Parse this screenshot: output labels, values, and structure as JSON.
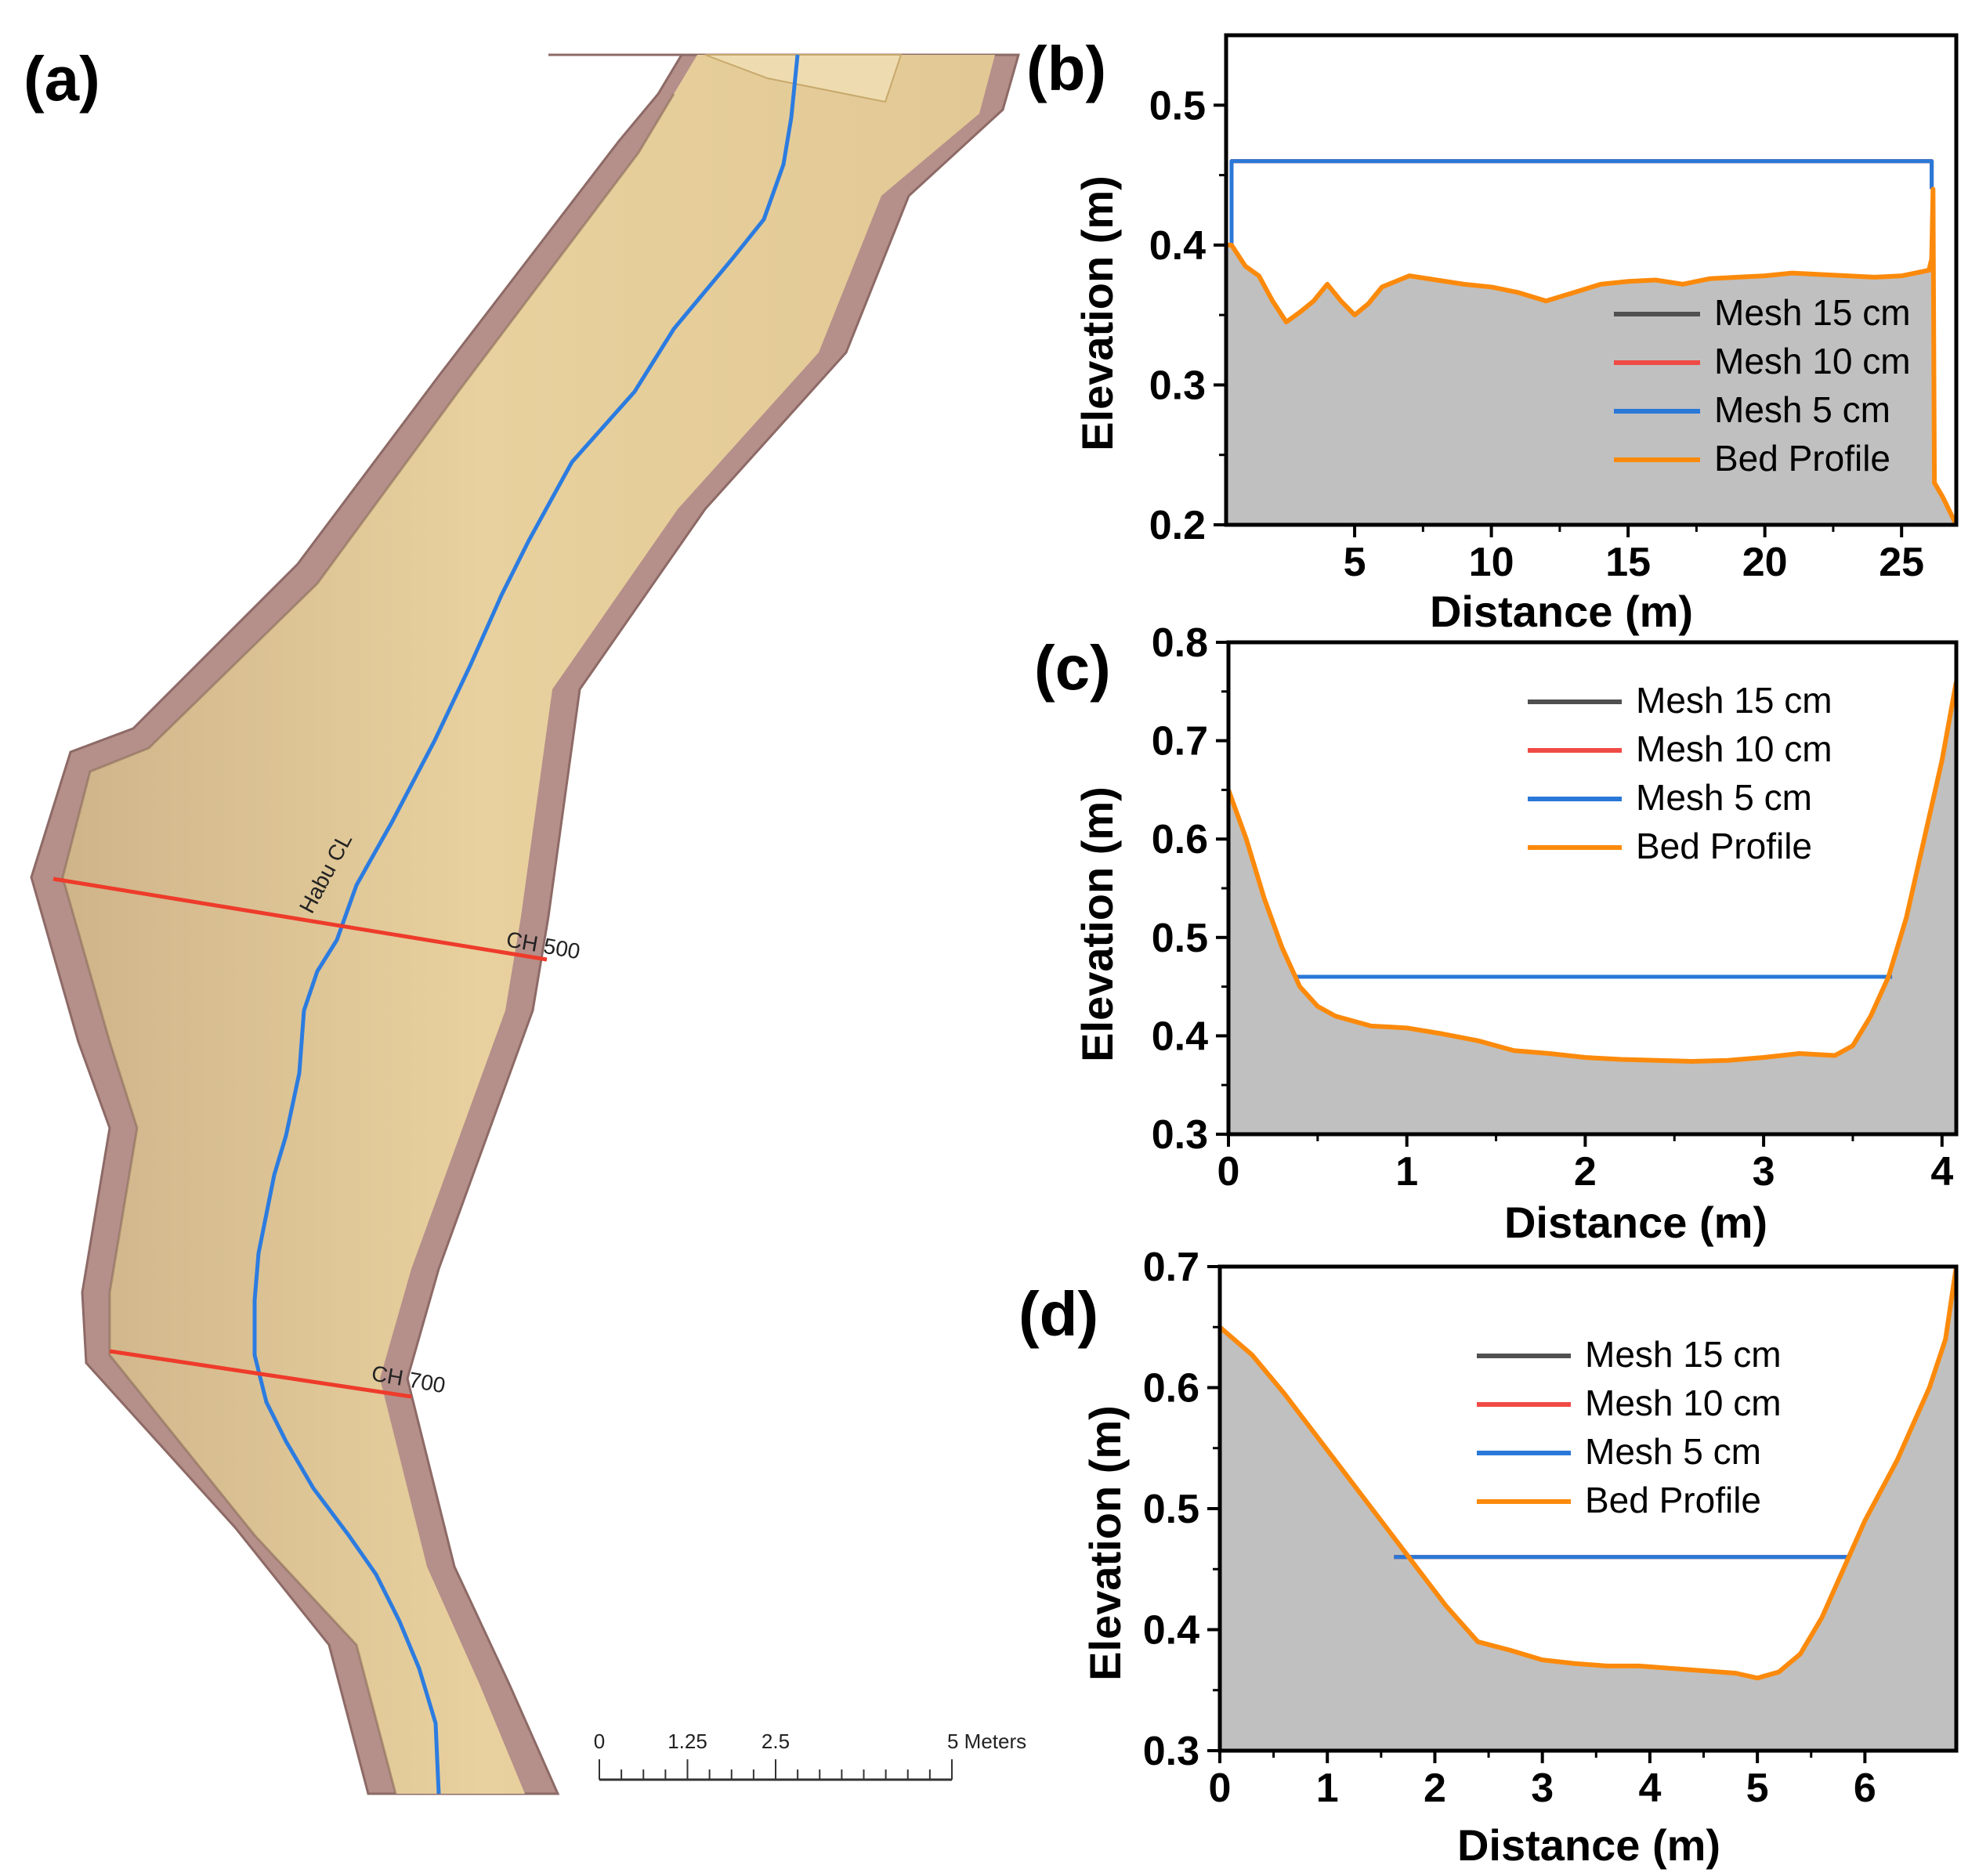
{
  "colors": {
    "mesh15": "#505050",
    "mesh10": "#f04a45",
    "mesh5": "#2a78d8",
    "bed": "#fb8a0c",
    "fill": "#c0c0c0",
    "bank": "#b58f8a",
    "channel": "#e7cf9c",
    "centerline": "#2c7ce0",
    "section": "#ee3b2b"
  },
  "panel_a": {
    "letter": "(a)",
    "centerline_label": "Habu CL",
    "section_labels": [
      "CH 500",
      "CH 700"
    ],
    "scale_bar": {
      "ticks": [
        "0",
        "1.25",
        "2.5",
        "5 Meters"
      ],
      "tick_values": [
        0,
        1.25,
        2.5,
        5
      ]
    }
  },
  "chart_data": [
    {
      "type": "area",
      "panel": "(b)",
      "xlabel": "Distance (m)",
      "ylabel": "Elevation (m)",
      "xlim": [
        0.3,
        27
      ],
      "ylim": [
        0.2,
        0.55
      ],
      "xticks": [
        "5",
        "10",
        "15",
        "20",
        "25"
      ],
      "xtick_values": [
        5,
        10,
        15,
        20,
        25
      ],
      "yticks": [
        "0.2",
        "0.3",
        "0.4",
        "0.5"
      ],
      "ytick_values": [
        0.2,
        0.3,
        0.4,
        0.5
      ],
      "legend": [
        "Mesh 15 cm",
        "Mesh 10 cm",
        "Mesh 5 cm",
        "Bed Profile"
      ],
      "legend_position": "bottom-right",
      "series": [
        {
          "name": "Bed Profile",
          "x": [
            0.3,
            0.5,
            1.0,
            1.5,
            2.0,
            2.5,
            3.0,
            3.5,
            4.0,
            4.5,
            5.0,
            5.5,
            6.0,
            7.0,
            8.0,
            9.0,
            10.0,
            11.0,
            12.0,
            13.0,
            14.0,
            15.0,
            16.0,
            17.0,
            18.0,
            19.0,
            20.0,
            21.0,
            22.0,
            23.0,
            24.0,
            25.0,
            26.0,
            26.1,
            26.15,
            26.2,
            26.5,
            27.0
          ],
          "y": [
            0.4,
            0.4,
            0.385,
            0.378,
            0.36,
            0.345,
            0.352,
            0.36,
            0.372,
            0.36,
            0.35,
            0.358,
            0.37,
            0.378,
            0.375,
            0.372,
            0.37,
            0.366,
            0.36,
            0.366,
            0.372,
            0.374,
            0.375,
            0.372,
            0.376,
            0.377,
            0.378,
            0.38,
            0.379,
            0.378,
            0.377,
            0.378,
            0.382,
            0.39,
            0.44,
            0.23,
            0.22,
            0.2
          ]
        },
        {
          "name": "Mesh 5 cm",
          "x": [
            0.5,
            0.5,
            26.1,
            26.1
          ],
          "y": [
            0.4,
            0.46,
            0.46,
            0.44
          ]
        },
        {
          "name": "Mesh 10 cm",
          "x": [
            0.5,
            0.5,
            26.1,
            26.1
          ],
          "y": [
            0.4,
            0.46,
            0.46,
            0.44
          ]
        },
        {
          "name": "Mesh 15 cm",
          "x": [
            0.5,
            0.5,
            26.1,
            26.1
          ],
          "y": [
            0.4,
            0.46,
            0.46,
            0.44
          ]
        }
      ]
    },
    {
      "type": "area",
      "panel": "(c)",
      "xlabel": "Distance (m)",
      "ylabel": "Elevation (m)",
      "xlim": [
        0,
        4.08
      ],
      "ylim": [
        0.3,
        0.8
      ],
      "xticks": [
        "0",
        "1",
        "2",
        "3",
        "4"
      ],
      "xtick_values": [
        0,
        1,
        2,
        3,
        4
      ],
      "yticks": [
        "0.3",
        "0.4",
        "0.5",
        "0.6",
        "0.7",
        "0.8"
      ],
      "ytick_values": [
        0.3,
        0.4,
        0.5,
        0.6,
        0.7,
        0.8
      ],
      "legend": [
        "Mesh 15 cm",
        "Mesh 10 cm",
        "Mesh 5 cm",
        "Bed Profile"
      ],
      "legend_position": "top-center",
      "series": [
        {
          "name": "Bed Profile",
          "x": [
            0,
            0.1,
            0.2,
            0.3,
            0.4,
            0.5,
            0.6,
            0.8,
            1.0,
            1.2,
            1.4,
            1.6,
            1.8,
            2.0,
            2.2,
            2.4,
            2.6,
            2.8,
            3.0,
            3.2,
            3.4,
            3.5,
            3.6,
            3.7,
            3.8,
            3.9,
            4.0,
            4.08
          ],
          "y": [
            0.65,
            0.6,
            0.54,
            0.49,
            0.45,
            0.43,
            0.42,
            0.41,
            0.408,
            0.402,
            0.395,
            0.385,
            0.382,
            0.378,
            0.376,
            0.375,
            0.374,
            0.375,
            0.378,
            0.382,
            0.38,
            0.39,
            0.42,
            0.46,
            0.52,
            0.6,
            0.68,
            0.76
          ]
        },
        {
          "name": "Mesh 5 cm",
          "x": [
            0.38,
            3.72
          ],
          "y": [
            0.46,
            0.46
          ]
        },
        {
          "name": "Mesh 10 cm",
          "x": [
            0.38,
            3.72
          ],
          "y": [
            0.46,
            0.46
          ]
        },
        {
          "name": "Mesh 15 cm",
          "x": [
            0.38,
            3.72
          ],
          "y": [
            0.46,
            0.46
          ]
        }
      ]
    },
    {
      "type": "area",
      "panel": "(d)",
      "xlabel": "Distance (m)",
      "ylabel": "Elevation (m)",
      "xlim": [
        0,
        6.85
      ],
      "ylim": [
        0.3,
        0.7
      ],
      "xticks": [
        "0",
        "1",
        "2",
        "3",
        "4",
        "5",
        "6"
      ],
      "xtick_values": [
        0,
        1,
        2,
        3,
        4,
        5,
        6
      ],
      "yticks": [
        "0.3",
        "0.4",
        "0.5",
        "0.6",
        "0.7"
      ],
      "ytick_values": [
        0.3,
        0.4,
        0.5,
        0.6,
        0.7
      ],
      "legend": [
        "Mesh 15 cm",
        "Mesh 10 cm",
        "Mesh 5 cm",
        "Bed Profile"
      ],
      "legend_position": "top-center",
      "series": [
        {
          "name": "Bed Profile",
          "x": [
            0,
            0.3,
            0.6,
            0.9,
            1.2,
            1.5,
            1.8,
            2.1,
            2.4,
            2.7,
            3.0,
            3.3,
            3.6,
            3.9,
            4.2,
            4.5,
            4.8,
            5.0,
            5.2,
            5.4,
            5.6,
            5.8,
            6.0,
            6.3,
            6.6,
            6.75,
            6.85
          ],
          "y": [
            0.65,
            0.627,
            0.595,
            0.56,
            0.525,
            0.49,
            0.455,
            0.42,
            0.39,
            0.383,
            0.375,
            0.372,
            0.37,
            0.37,
            0.368,
            0.366,
            0.364,
            0.36,
            0.365,
            0.38,
            0.41,
            0.45,
            0.49,
            0.54,
            0.6,
            0.64,
            0.7
          ]
        },
        {
          "name": "Mesh 5 cm",
          "x": [
            1.62,
            5.85
          ],
          "y": [
            0.46,
            0.46
          ]
        },
        {
          "name": "Mesh 10 cm",
          "x": [
            1.62,
            5.85
          ],
          "y": [
            0.46,
            0.46
          ]
        },
        {
          "name": "Mesh 15 cm",
          "x": [
            1.62,
            5.85
          ],
          "y": [
            0.46,
            0.46
          ]
        }
      ]
    }
  ]
}
